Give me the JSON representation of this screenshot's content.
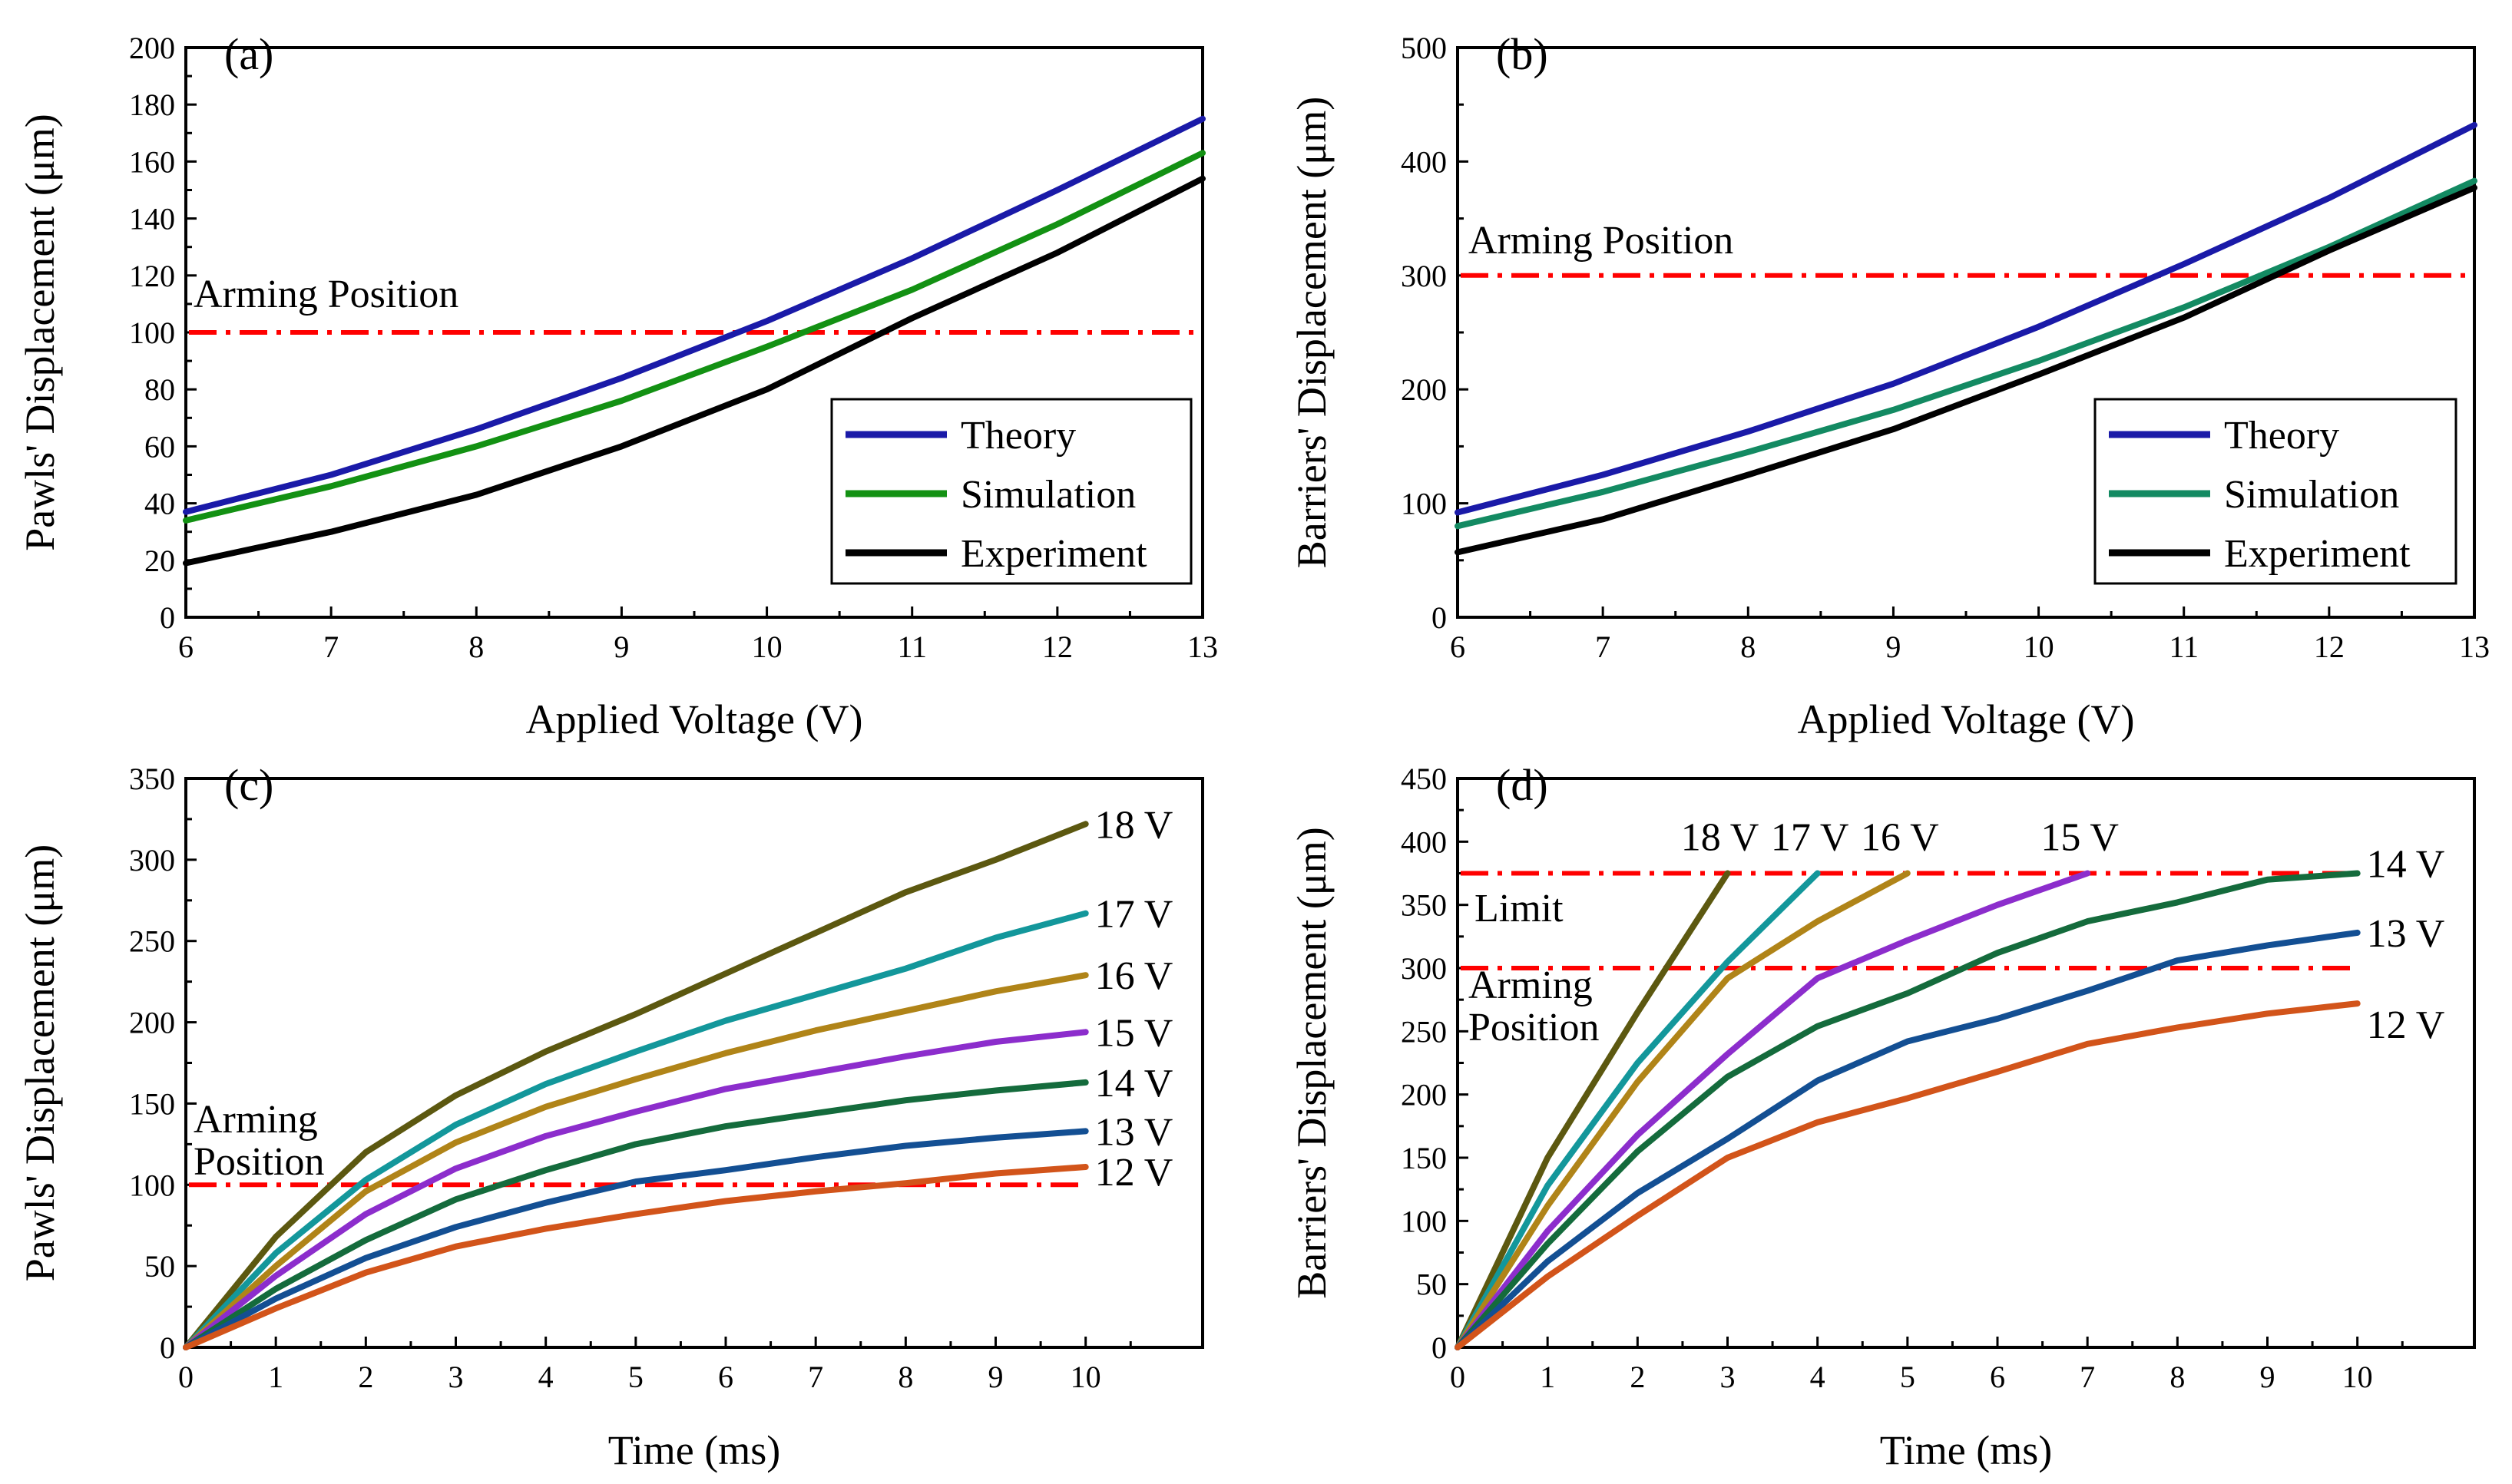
{
  "chart_data": [
    {
      "type": "line",
      "panel_label": "(a)",
      "xlabel": "Applied Voltage (V)",
      "ylabel": "Pawls' Displacement (μm)",
      "xlim": [
        6,
        13
      ],
      "ylim": [
        0,
        200
      ],
      "xticks": [
        6,
        7,
        8,
        9,
        10,
        11,
        12,
        13
      ],
      "yticks": [
        0,
        20,
        40,
        60,
        80,
        100,
        120,
        140,
        160,
        180,
        200
      ],
      "x": [
        6,
        7,
        8,
        9,
        10,
        11,
        12,
        13
      ],
      "series": [
        {
          "name": "Theory",
          "color": "#1a1aa8",
          "values": [
            37,
            50,
            66,
            84,
            104,
            126,
            150,
            175
          ]
        },
        {
          "name": "Simulation",
          "color": "#139113",
          "values": [
            34,
            46,
            60,
            76,
            95,
            115,
            138,
            163
          ]
        },
        {
          "name": "Experiment",
          "color": "#000000",
          "values": [
            19,
            30,
            43,
            60,
            80,
            105,
            128,
            154
          ]
        }
      ],
      "reference_lines": [
        {
          "y": 100,
          "label": "Arming Position",
          "color": "#ff0000"
        }
      ],
      "legend": "bottom-right"
    },
    {
      "type": "line",
      "panel_label": "(b)",
      "xlabel": "Applied Voltage (V)",
      "ylabel": "Barriers' Displacement (μm)",
      "xlim": [
        6,
        13
      ],
      "ylim": [
        0,
        500
      ],
      "xticks": [
        6,
        7,
        8,
        9,
        10,
        11,
        12,
        13
      ],
      "yticks": [
        0,
        100,
        200,
        300,
        400,
        500
      ],
      "x": [
        6,
        7,
        8,
        9,
        10,
        11,
        12,
        13
      ],
      "series": [
        {
          "name": "Theory",
          "color": "#1a1aa8",
          "values": [
            92,
            125,
            163,
            205,
            255,
            310,
            368,
            432
          ]
        },
        {
          "name": "Simulation",
          "color": "#138a62",
          "values": [
            80,
            110,
            145,
            182,
            225,
            272,
            325,
            383
          ]
        },
        {
          "name": "Experiment",
          "color": "#000000",
          "values": [
            57,
            86,
            125,
            165,
            213,
            263,
            322,
            377
          ]
        }
      ],
      "reference_lines": [
        {
          "y": 300,
          "label": "Arming Position",
          "color": "#ff0000"
        }
      ],
      "legend": "bottom-right"
    },
    {
      "type": "line",
      "panel_label": "(c)",
      "xlabel": "Time (ms)",
      "ylabel": "Pawls' Displacement (μm)",
      "xlim": [
        0,
        11.3
      ],
      "ylim": [
        0,
        350
      ],
      "xticks": [
        0,
        1,
        2,
        3,
        4,
        5,
        6,
        7,
        8,
        9,
        10
      ],
      "yticks": [
        0,
        50,
        100,
        150,
        200,
        250,
        300,
        350
      ],
      "x": [
        0,
        1,
        2,
        3,
        4,
        5,
        6,
        7,
        8,
        9,
        10
      ],
      "series": [
        {
          "name": "18 V",
          "color": "#5c5810",
          "values": [
            0,
            68,
            120,
            155,
            182,
            205,
            230,
            255,
            280,
            300,
            322
          ]
        },
        {
          "name": "17 V",
          "color": "#13979b",
          "values": [
            0,
            58,
            103,
            137,
            162,
            182,
            201,
            217,
            233,
            252,
            267
          ]
        },
        {
          "name": "16 V",
          "color": "#b08418",
          "values": [
            0,
            50,
            96,
            126,
            148,
            165,
            181,
            195,
            207,
            219,
            229
          ]
        },
        {
          "name": "15 V",
          "color": "#8c2dcc",
          "values": [
            0,
            44,
            82,
            110,
            130,
            145,
            159,
            169,
            179,
            188,
            194
          ]
        },
        {
          "name": "14 V",
          "color": "#146b3c",
          "values": [
            0,
            36,
            66,
            91,
            109,
            125,
            136,
            144,
            152,
            158,
            163
          ]
        },
        {
          "name": "13 V",
          "color": "#134f93",
          "values": [
            0,
            30,
            55,
            74,
            89,
            102,
            109,
            117,
            124,
            129,
            133
          ]
        },
        {
          "name": "12 V",
          "color": "#d2541a",
          "values": [
            0,
            24,
            46,
            62,
            73,
            82,
            90,
            96,
            101,
            107,
            111
          ]
        }
      ],
      "reference_lines": [
        {
          "y": 100,
          "label": "Arming Position",
          "color": "#ff0000"
        }
      ]
    },
    {
      "type": "line",
      "panel_label": "(d)",
      "xlabel": "Time (ms)",
      "ylabel": "Barriers' Displacement (μm)",
      "xlim": [
        0,
        11.3
      ],
      "ylim": [
        0,
        450
      ],
      "xticks": [
        0,
        1,
        2,
        3,
        4,
        5,
        6,
        7,
        8,
        9,
        10
      ],
      "yticks": [
        0,
        50,
        100,
        150,
        200,
        250,
        300,
        350,
        400,
        450
      ],
      "series": [
        {
          "name": "18 V",
          "color": "#5c5810",
          "x": [
            0,
            1,
            2,
            3
          ],
          "values": [
            0,
            150,
            265,
            375
          ]
        },
        {
          "name": "17 V",
          "color": "#13979b",
          "x": [
            0,
            1,
            2,
            3,
            4
          ],
          "values": [
            0,
            128,
            225,
            305,
            375
          ]
        },
        {
          "name": "16 V",
          "color": "#b08418",
          "x": [
            0,
            1,
            2,
            3,
            4,
            5
          ],
          "values": [
            0,
            112,
            210,
            292,
            337,
            375
          ]
        },
        {
          "name": "15 V",
          "color": "#8c2dcc",
          "x": [
            0,
            1,
            2,
            3,
            4,
            5,
            6,
            7
          ],
          "values": [
            0,
            92,
            168,
            232,
            292,
            322,
            350,
            375
          ]
        },
        {
          "name": "14 V",
          "color": "#146b3c",
          "x": [
            0,
            1,
            2,
            3,
            4,
            5,
            6,
            7,
            8,
            9,
            10
          ],
          "values": [
            0,
            82,
            155,
            214,
            254,
            280,
            312,
            337,
            352,
            370,
            375
          ]
        },
        {
          "name": "13 V",
          "color": "#134f93",
          "x": [
            0,
            1,
            2,
            3,
            4,
            5,
            6,
            7,
            8,
            9,
            10
          ],
          "values": [
            0,
            68,
            122,
            165,
            211,
            242,
            260,
            282,
            306,
            318,
            328
          ]
        },
        {
          "name": "12 V",
          "color": "#d2541a",
          "x": [
            0,
            1,
            2,
            3,
            4,
            5,
            6,
            7,
            8,
            9,
            10
          ],
          "values": [
            0,
            56,
            104,
            150,
            178,
            197,
            218,
            240,
            253,
            264,
            272
          ]
        }
      ],
      "reference_lines": [
        {
          "y": 375,
          "label": "Limit",
          "color": "#ff0000"
        },
        {
          "y": 300,
          "label": "Arming Position",
          "color": "#ff0000"
        }
      ]
    }
  ]
}
